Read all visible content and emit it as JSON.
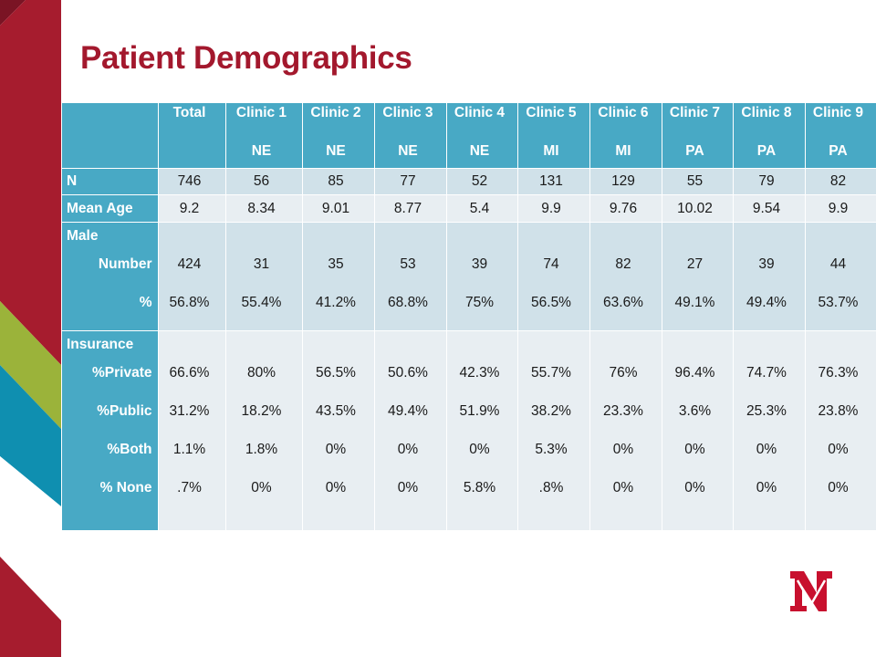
{
  "slide": {
    "title": "Patient Demographics"
  },
  "colors": {
    "accent_red": "#a3182d",
    "table_header": "#48a9c5",
    "row_dark": "#d0e1e9",
    "row_light": "#e8eef2",
    "deco_green": "#9bb33a",
    "deco_teal": "#0f8fb0"
  },
  "table": {
    "headers": [
      {
        "name": "",
        "sub": ""
      },
      {
        "name": "Total",
        "sub": ""
      },
      {
        "name": "Clinic 1",
        "sub": "NE"
      },
      {
        "name": "Clinic 2",
        "sub": "NE"
      },
      {
        "name": "Clinic 3",
        "sub": "NE"
      },
      {
        "name": "Clinic 4",
        "sub": "NE"
      },
      {
        "name": "Clinic 5",
        "sub": "MI"
      },
      {
        "name": "Clinic 6",
        "sub": "MI"
      },
      {
        "name": "Clinic 7",
        "sub": "PA"
      },
      {
        "name": "Clinic 8",
        "sub": "PA"
      },
      {
        "name": "Clinic 9",
        "sub": "PA"
      }
    ],
    "n": {
      "label": "N",
      "values": [
        "746",
        "56",
        "85",
        "77",
        "52",
        "131",
        "129",
        "55",
        "79",
        "82"
      ]
    },
    "mean_age": {
      "label": "Mean Age",
      "values": [
        "9.2",
        "8.34",
        "9.01",
        "8.77",
        "5.4",
        "9.9",
        "9.76",
        "10.02",
        "9.54",
        "9.9"
      ]
    },
    "male": {
      "label": "Male",
      "number_label": "Number",
      "pct_label": "%",
      "number": [
        "424",
        "31",
        "35",
        "53",
        "39",
        "74",
        "82",
        "27",
        "39",
        "44"
      ],
      "pct": [
        "56.8%",
        "55.4%",
        "41.2%",
        "68.8%",
        "75%",
        "56.5%",
        "63.6%",
        "49.1%",
        "49.4%",
        "53.7%"
      ]
    },
    "insurance": {
      "label": "Insurance",
      "private_label": "%Private",
      "public_label": "%Public",
      "both_label": "%Both",
      "none_label": "% None",
      "private": [
        "66.6%",
        "80%",
        "56.5%",
        "50.6%",
        "42.3%",
        "55.7%",
        "76%",
        "96.4%",
        "74.7%",
        "76.3%"
      ],
      "public": [
        "31.2%",
        "18.2%",
        "43.5%",
        "49.4%",
        "51.9%",
        "38.2%",
        "23.3%",
        "3.6%",
        "25.3%",
        "23.8%"
      ],
      "both": [
        "1.1%",
        "1.8%",
        "0%",
        "0%",
        "0%",
        "5.3%",
        "0%",
        "0%",
        "0%",
        "0%"
      ],
      "none": [
        ".7%",
        "0%",
        "0%",
        "0%",
        "5.8%",
        ".8%",
        "0%",
        "0%",
        "0%",
        "0%"
      ]
    }
  },
  "logo": {
    "icon": "university-n-logo-icon"
  }
}
